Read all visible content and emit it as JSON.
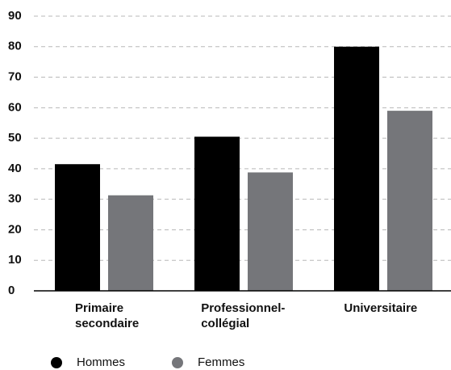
{
  "chart_data": {
    "type": "bar",
    "categories": [
      [
        "Primaire",
        "secondaire"
      ],
      [
        "Professionnel-",
        "collégial"
      ],
      [
        "Universitaire"
      ]
    ],
    "series": [
      {
        "name": "Hommes",
        "color": "#000000",
        "values": [
          41.5,
          50.5,
          80
        ]
      },
      {
        "name": "Femmes",
        "color": "#75767a",
        "values": [
          31.3,
          38.8,
          59
        ]
      }
    ],
    "ylim": [
      0,
      90
    ],
    "yticks": [
      0,
      10,
      20,
      30,
      40,
      50,
      60,
      70,
      80,
      90
    ],
    "grid": true
  }
}
